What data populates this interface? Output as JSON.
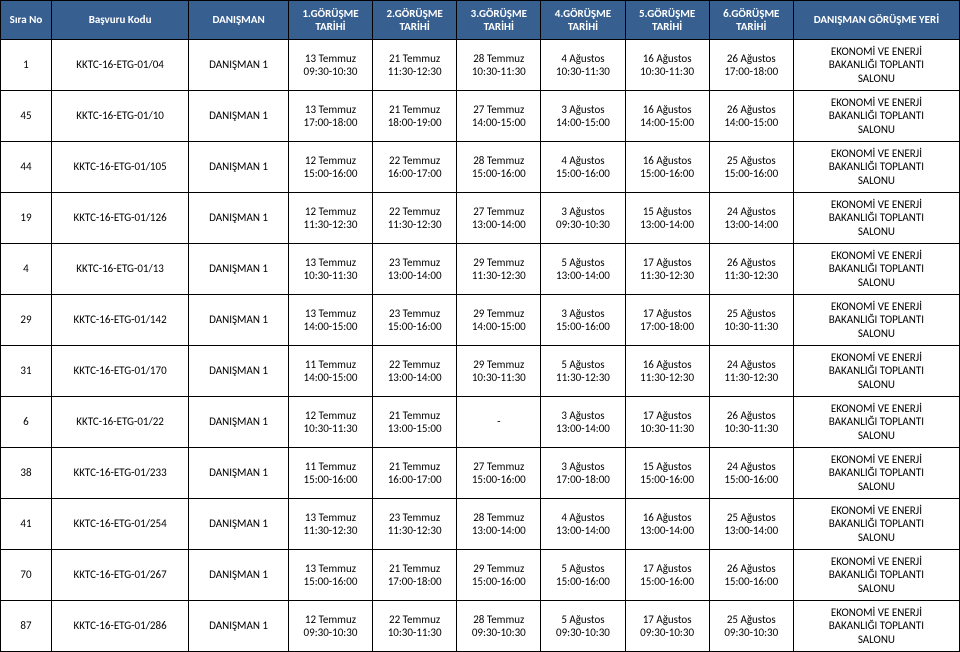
{
  "header": {
    "sira": "Sıra No",
    "kod": "Başvuru Kodu",
    "danisman": "DANIŞMAN",
    "g1": "1.GÖRÜŞME TARİHİ",
    "g2": "2.GÖRÜŞME TARİHİ",
    "g3": "3.GÖRÜŞME TARİHİ",
    "g4": "4.GÖRÜŞME TARİHİ",
    "g5": "5.GÖRÜŞME TARİHİ",
    "g6": "6.GÖRÜŞME TARİHİ",
    "yer": "DANIŞMAN GÖRÜŞME  YERİ"
  },
  "yer_text": {
    "l1": "EKONOMİ VE ENERJİ",
    "l2": "BAKANLIĞI TOPLANTI",
    "l3": "SALONU"
  },
  "rows": [
    {
      "sira": "1",
      "kod": "KKTC-16-ETG-01/04",
      "dan": "DANIŞMAN 1",
      "g1a": "13 Temmuz",
      "g1b": "09:30-10:30",
      "g2a": "21 Temmuz",
      "g2b": "11:30-12:30",
      "g3a": "28 Temmuz",
      "g3b": "10:30-11:30",
      "g4a": "4 Ağustos",
      "g4b": "10:30-11:30",
      "g5a": "16 Ağustos",
      "g5b": "10:30-11:30",
      "g6a": "26 Ağustos",
      "g6b": "17:00-18:00"
    },
    {
      "sira": "45",
      "kod": "KKTC-16-ETG-01/10",
      "dan": "DANIŞMAN 1",
      "g1a": "13 Temmuz",
      "g1b": "17:00-18:00",
      "g2a": "21 Temmuz",
      "g2b": "18:00-19:00",
      "g3a": "27 Temmuz",
      "g3b": "14:00-15:00",
      "g4a": "3 Ağustos",
      "g4b": "14:00-15:00",
      "g5a": "16 Ağustos",
      "g5b": "14:00-15:00",
      "g6a": "26 Ağustos",
      "g6b": "14:00-15:00"
    },
    {
      "sira": "44",
      "kod": "KKTC-16-ETG-01/105",
      "dan": "DANIŞMAN 1",
      "g1a": "12 Temmuz",
      "g1b": "15:00-16:00",
      "g2a": "22 Temmuz",
      "g2b": "16:00-17:00",
      "g3a": "28 Temmuz",
      "g3b": "15:00-16:00",
      "g4a": "4 Ağustos",
      "g4b": "15:00-16:00",
      "g5a": "16 Ağustos",
      "g5b": "15:00-16:00",
      "g6a": "25 Ağustos",
      "g6b": "15:00-16:00"
    },
    {
      "sira": "19",
      "kod": "KKTC-16-ETG-01/126",
      "dan": "DANIŞMAN 1",
      "g1a": "12 Temmuz",
      "g1b": "11:30-12:30",
      "g2a": "22 Temmuz",
      "g2b": "11:30-12:30",
      "g3a": "27 Temmuz",
      "g3b": "13:00-14:00",
      "g4a": "3 Ağustos",
      "g4b": "09:30-10:30",
      "g5a": "15 Ağustos",
      "g5b": "13:00-14:00",
      "g6a": "24 Ağustos",
      "g6b": "13:00-14:00"
    },
    {
      "sira": "4",
      "kod": "KKTC-16-ETG-01/13",
      "dan": "DANIŞMAN 1",
      "g1a": "13 Temmuz",
      "g1b": "10:30-11:30",
      "g2a": "23 Temmuz",
      "g2b": "13:00-14:00",
      "g3a": "29 Temmuz",
      "g3b": "11:30-12:30",
      "g4a": "5 Ağustos",
      "g4b": "13:00-14:00",
      "g5a": "17 Ağustos",
      "g5b": "11:30-12:30",
      "g6a": "26 Ağustos",
      "g6b": "11:30-12:30"
    },
    {
      "sira": "29",
      "kod": "KKTC-16-ETG-01/142",
      "dan": "DANIŞMAN 1",
      "g1a": "13 Temmuz",
      "g1b": "14:00-15:00",
      "g2a": "23 Temmuz",
      "g2b": "15:00-16:00",
      "g3a": "29 Temmuz",
      "g3b": "14:00-15:00",
      "g4a": "3 Ağustos",
      "g4b": "15:00-16:00",
      "g5a": "17 Ağustos",
      "g5b": "17:00-18:00",
      "g6a": "25 Ağustos",
      "g6b": "10:30-11:30"
    },
    {
      "sira": "31",
      "kod": "KKTC-16-ETG-01/170",
      "dan": "DANIŞMAN 1",
      "g1a": "11 Temmuz",
      "g1b": "14:00-15:00",
      "g2a": "22 Temmuz",
      "g2b": "13:00-14:00",
      "g3a": "29 Temmuz",
      "g3b": "10:30-11:30",
      "g4a": "5 Ağustos",
      "g4b": "11:30-12:30",
      "g5a": "16 Ağustos",
      "g5b": "11:30-12:30",
      "g6a": "24 Ağustos",
      "g6b": "11:30-12:30"
    },
    {
      "sira": "6",
      "kod": "KKTC-16-ETG-01/22",
      "dan": "DANIŞMAN 1",
      "g1a": "12 Temmuz",
      "g1b": "10:30-11:30",
      "g2a": "21 Temmuz",
      "g2b": "13:00-15:00",
      "g3a": "",
      "g3b": "-",
      "g4a": "3 Ağustos",
      "g4b": "13:00-14:00",
      "g5a": "17 Ağustos",
      "g5b": "10:30-11:30",
      "g6a": "26 Ağustos",
      "g6b": "10:30-11:30"
    },
    {
      "sira": "38",
      "kod": "KKTC-16-ETG-01/233",
      "dan": "DANIŞMAN 1",
      "g1a": "11 Temmuz",
      "g1b": "15:00-16:00",
      "g2a": "21 Temmuz",
      "g2b": "16:00-17:00",
      "g3a": "27 Temmuz",
      "g3b": "15:00-16:00",
      "g4a": "3 Ağustos",
      "g4b": "17:00-18:00",
      "g5a": "15 Ağustos",
      "g5b": "15:00-16:00",
      "g6a": "24 Ağustos",
      "g6b": "15:00-16:00"
    },
    {
      "sira": "41",
      "kod": "KKTC-16-ETG-01/254",
      "dan": "DANIŞMAN 1",
      "g1a": "13 Temmuz",
      "g1b": "11:30-12:30",
      "g2a": "23 Temmuz",
      "g2b": "11:30-12:30",
      "g3a": "28 Temmuz",
      "g3b": "13:00-14:00",
      "g4a": "4 Ağustos",
      "g4b": "13:00-14:00",
      "g5a": "16 Ağustos",
      "g5b": "13:00-14:00",
      "g6a": "25 Ağustos",
      "g6b": "13:00-14:00"
    },
    {
      "sira": "70",
      "kod": "KKTC-16-ETG-01/267",
      "dan": "DANIŞMAN 1",
      "g1a": "13 Temmuz",
      "g1b": "15:00-16:00",
      "g2a": "21 Temmuz",
      "g2b": "17:00-18:00",
      "g3a": "29 Temmuz",
      "g3b": "15:00-16:00",
      "g4a": "5 Ağustos",
      "g4b": "15:00-16:00",
      "g5a": "17 Ağustos",
      "g5b": "15:00-16:00",
      "g6a": "26 Ağustos",
      "g6b": "15:00-16:00"
    },
    {
      "sira": "87",
      "kod": "KKTC-16-ETG-01/286",
      "dan": "DANIŞMAN 1",
      "g1a": "12 Temmuz",
      "g1b": "09:30-10:30",
      "g2a": "22 Temmuz",
      "g2b": "10:30-11:30",
      "g3a": "28 Temmuz",
      "g3b": "09:30-10:30",
      "g4a": "5 Ağustos",
      "g4b": "09:30-10:30",
      "g5a": "17 Ağustos",
      "g5b": "09:30-10:30",
      "g6a": "25 Ağustos",
      "g6b": "09:30-10:30"
    }
  ]
}
